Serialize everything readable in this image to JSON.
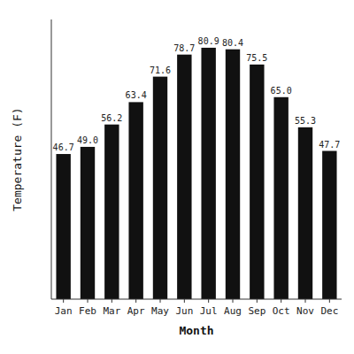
{
  "chart_data": {
    "type": "bar",
    "categories": [
      "Jan",
      "Feb",
      "Mar",
      "Apr",
      "May",
      "Jun",
      "Jul",
      "Aug",
      "Sep",
      "Oct",
      "Nov",
      "Dec"
    ],
    "values": [
      46.7,
      49.0,
      56.2,
      63.4,
      71.6,
      78.7,
      80.9,
      80.4,
      75.5,
      65.0,
      55.3,
      47.7
    ],
    "value_labels": [
      "46.7",
      "49.0",
      "56.2",
      "63.4",
      "71.6",
      "78.7",
      "80.9",
      "80.4",
      "75.5",
      "65.0",
      "55.3",
      "47.7"
    ],
    "color": "#111111",
    "xlabel": "Month",
    "ylabel": "Temperature (F)",
    "ylim": [
      0,
      90
    ],
    "data_labels": true,
    "tick_labels": "x"
  }
}
